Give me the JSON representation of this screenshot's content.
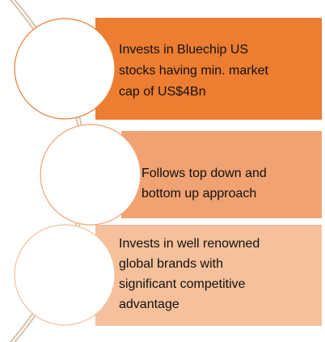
{
  "items": [
    {
      "lines": [
        "Invests in Bluechip US",
        "stocks having min. market",
        "cap of US$4Bn"
      ]
    },
    {
      "lines": [
        "Follows top down and",
        "bottom up approach"
      ]
    },
    {
      "lines": [
        "Invests in well renowned",
        "global brands with",
        "significant competitive",
        "advantage"
      ]
    }
  ]
}
